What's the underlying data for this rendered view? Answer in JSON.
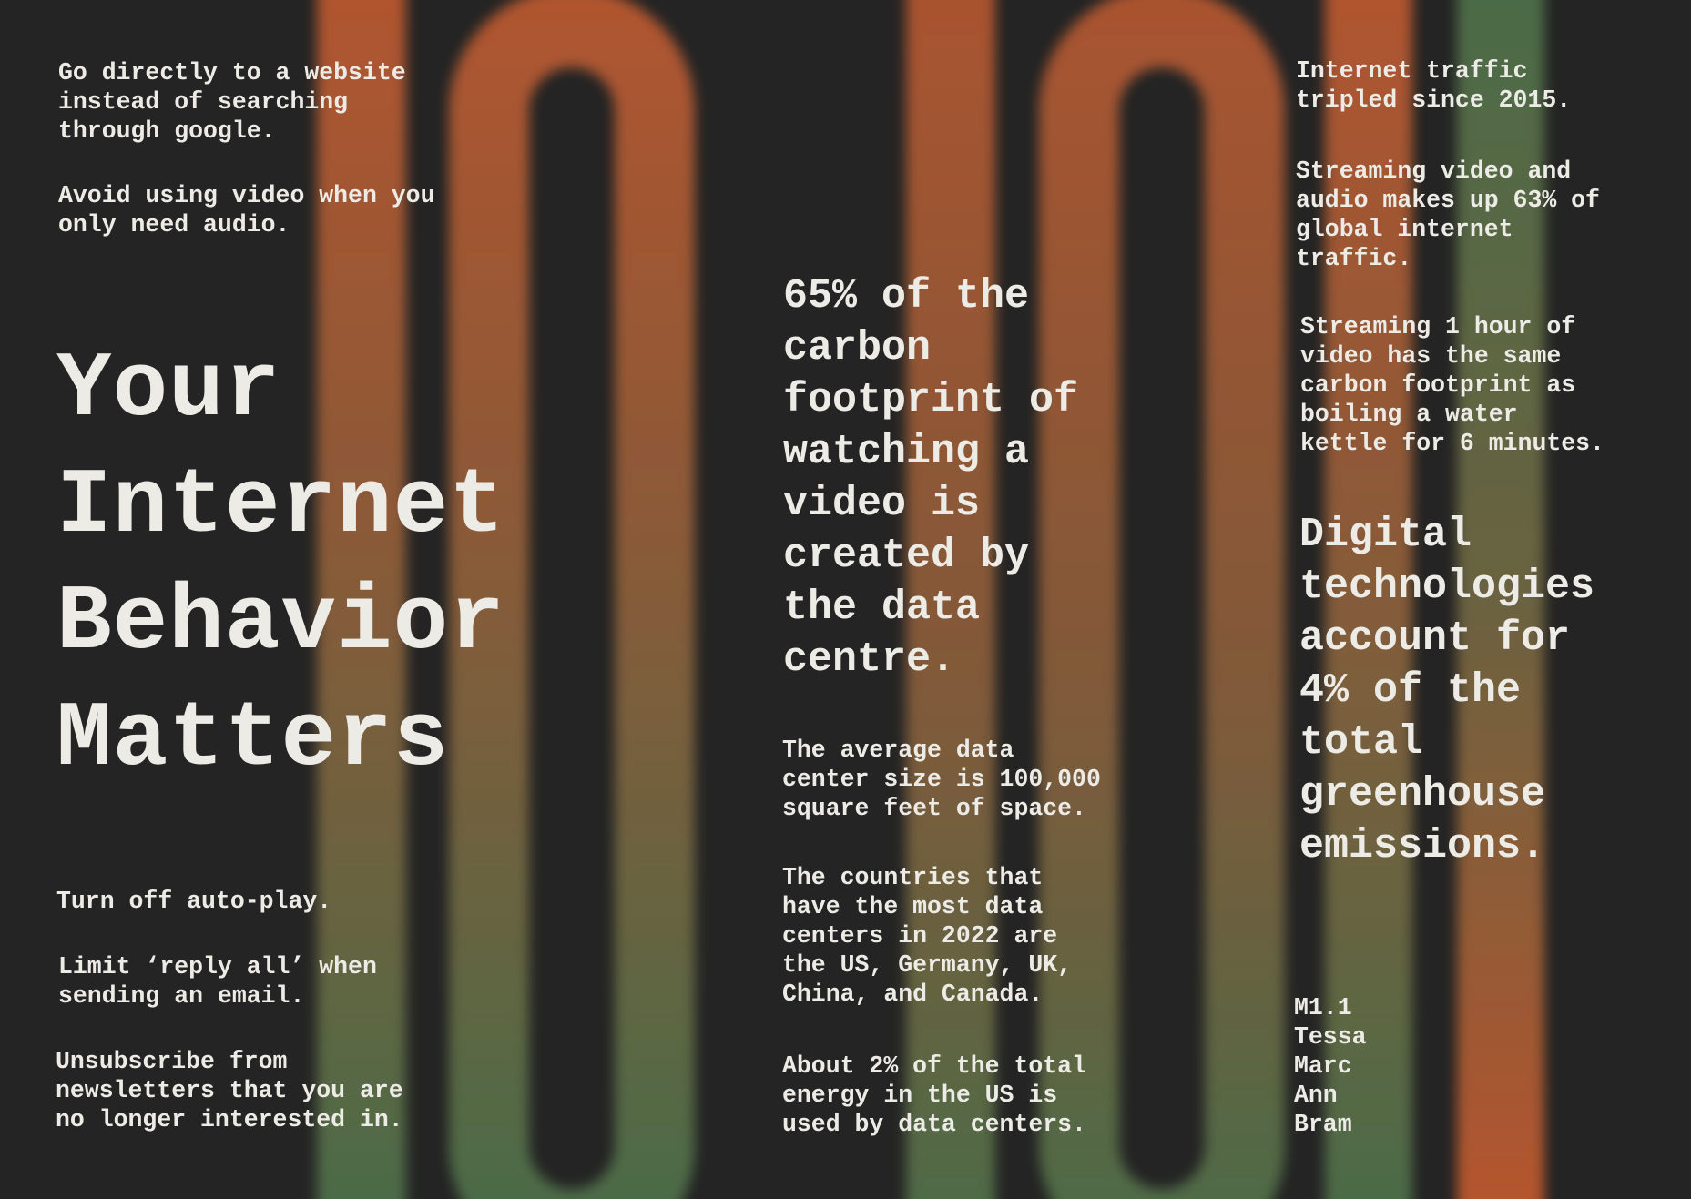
{
  "colors": {
    "background": "#242424",
    "orange": "#b0552f",
    "green": "#4c6b47",
    "text": "#ecebe6"
  },
  "left": {
    "tip_website": "Go directly to a website\ninstead of searching\nthrough google.",
    "tip_video": "Avoid using video when you\nonly need audio.",
    "title": "Your\nInternet\nBehavior\nMatters",
    "tip_autoplay": "Turn off auto-play.",
    "tip_reply": "Limit ‘reply all’ when\nsending an email.",
    "tip_unsubscribe": "Unsubscribe from\nnewsletters that you are\nno longer interested in."
  },
  "middle": {
    "fact_carbon": "65% of the\ncarbon\nfootprint of\nwatching a\nvideo is\ncreated by\nthe data\ncentre.",
    "fact_size": "The average data\ncenter size is 100,000\nsquare feet of space.",
    "fact_countries": "The countries that\nhave the most data\ncenters in 2022 are\nthe US, Germany, UK,\nChina, and Canada.",
    "fact_energy": "About 2% of the total\nenergy in the US is\nused by data centers."
  },
  "right": {
    "fact_traffic": "Internet traffic\ntripled since 2015.",
    "fact_streaming": "Streaming video and\naudio makes up 63% of\nglobal internet\ntraffic.",
    "fact_kettle": "Streaming 1 hour of\nvideo has the same\ncarbon footprint as\nboiling a water\nkettle for 6 minutes.",
    "fact_emissions": "Digital\ntechnologies\naccount for\n4% of the\ntotal\ngreenhouse\nemissions.",
    "credits": "M1.1\nTessa\nMarc\nAnn\nBram"
  }
}
